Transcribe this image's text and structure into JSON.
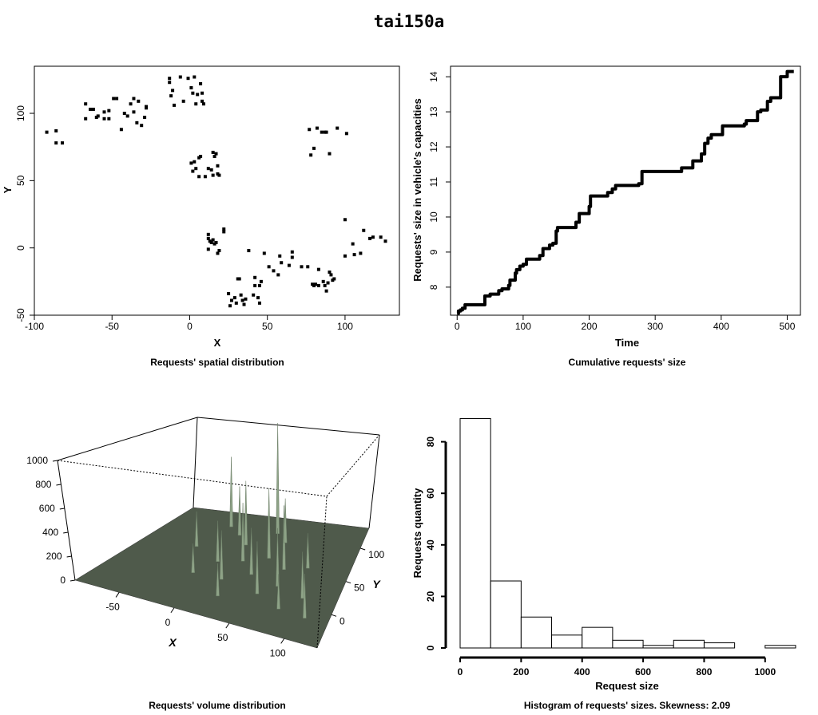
{
  "title": "tai150a",
  "chart_data": [
    {
      "type": "scatter",
      "caption": "Requests' spatial distribution",
      "xlabel": "X",
      "ylabel": "Y",
      "xlim": [
        -100,
        135
      ],
      "ylim": [
        -50,
        135
      ],
      "xticks": [
        -100,
        -50,
        0,
        50,
        100
      ],
      "yticks": [
        -50,
        0,
        50,
        100
      ],
      "points": [
        [
          -92,
          86
        ],
        [
          -86,
          87
        ],
        [
          -86,
          78
        ],
        [
          -82,
          78
        ],
        [
          -67,
          107
        ],
        [
          -67,
          96
        ],
        [
          -64,
          103
        ],
        [
          -62,
          103
        ],
        [
          -60,
          97
        ],
        [
          -59,
          98
        ],
        [
          -55,
          101
        ],
        [
          -55,
          96
        ],
        [
          -52,
          96
        ],
        [
          -52,
          102
        ],
        [
          -49,
          111
        ],
        [
          -47,
          111
        ],
        [
          -44,
          88
        ],
        [
          -42,
          100
        ],
        [
          -40,
          98
        ],
        [
          -38,
          107
        ],
        [
          -36,
          101
        ],
        [
          -36,
          111
        ],
        [
          -34,
          93
        ],
        [
          -33,
          109
        ],
        [
          -31,
          91
        ],
        [
          -29,
          97
        ],
        [
          -28,
          105
        ],
        [
          -28,
          104
        ],
        [
          -13,
          126
        ],
        [
          -13,
          123
        ],
        [
          -12,
          113
        ],
        [
          -11,
          117
        ],
        [
          -10,
          106
        ],
        [
          -6,
          127
        ],
        [
          -4,
          109
        ],
        [
          -1,
          126
        ],
        [
          1,
          119
        ],
        [
          2,
          115
        ],
        [
          3,
          127
        ],
        [
          4,
          107
        ],
        [
          5,
          114
        ],
        [
          7,
          122
        ],
        [
          8,
          115
        ],
        [
          8,
          109
        ],
        [
          9,
          107
        ],
        [
          1,
          63
        ],
        [
          2,
          57
        ],
        [
          3,
          64
        ],
        [
          4,
          59
        ],
        [
          6,
          53
        ],
        [
          6,
          67
        ],
        [
          7,
          68
        ],
        [
          10,
          53
        ],
        [
          12,
          59
        ],
        [
          14,
          58
        ],
        [
          15,
          71
        ],
        [
          15,
          54
        ],
        [
          16,
          68
        ],
        [
          17,
          70
        ],
        [
          18,
          61
        ],
        [
          18,
          55
        ],
        [
          19,
          54
        ],
        [
          12,
          10
        ],
        [
          12,
          7
        ],
        [
          12,
          -1
        ],
        [
          13,
          5
        ],
        [
          14,
          4
        ],
        [
          15,
          6
        ],
        [
          16,
          3
        ],
        [
          17,
          4
        ],
        [
          19,
          -2
        ],
        [
          18,
          -4
        ],
        [
          22,
          14
        ],
        [
          22,
          12
        ],
        [
          25,
          -34
        ],
        [
          26,
          -43
        ],
        [
          27,
          -39
        ],
        [
          29,
          -37
        ],
        [
          30,
          -41
        ],
        [
          31,
          -23
        ],
        [
          32,
          -23
        ],
        [
          33,
          -35
        ],
        [
          34,
          -39
        ],
        [
          35,
          -42
        ],
        [
          36,
          -38
        ],
        [
          38,
          -2
        ],
        [
          41,
          -35
        ],
        [
          42,
          -28
        ],
        [
          42,
          -22
        ],
        [
          44,
          -37
        ],
        [
          45,
          -28
        ],
        [
          45,
          -41
        ],
        [
          46,
          -25
        ],
        [
          48,
          -4
        ],
        [
          51,
          -14
        ],
        [
          54,
          -17
        ],
        [
          57,
          -20
        ],
        [
          58,
          -6
        ],
        [
          59,
          -11
        ],
        [
          64,
          -13
        ],
        [
          66,
          -3
        ],
        [
          66,
          -7
        ],
        [
          72,
          -14
        ],
        [
          77,
          88
        ],
        [
          78,
          69
        ],
        [
          80,
          74
        ],
        [
          82,
          89
        ],
        [
          85,
          86
        ],
        [
          87,
          86
        ],
        [
          88,
          86
        ],
        [
          90,
          70
        ],
        [
          95,
          89
        ],
        [
          101,
          85
        ],
        [
          76,
          -14
        ],
        [
          79,
          -27
        ],
        [
          80,
          -28
        ],
        [
          81,
          -27
        ],
        [
          83,
          -28
        ],
        [
          83,
          -16
        ],
        [
          86,
          -25
        ],
        [
          87,
          -28
        ],
        [
          88,
          -32
        ],
        [
          89,
          -26
        ],
        [
          90,
          -18
        ],
        [
          91,
          -20
        ],
        [
          92,
          -24
        ],
        [
          93,
          -23
        ],
        [
          100,
          -6
        ],
        [
          100,
          21
        ],
        [
          105,
          3
        ],
        [
          106,
          -5
        ],
        [
          110,
          -4
        ],
        [
          112,
          13
        ],
        [
          116,
          7
        ],
        [
          118,
          8
        ],
        [
          123,
          8
        ],
        [
          126,
          5
        ]
      ]
    },
    {
      "type": "line",
      "caption": "Cumulative requests' size",
      "xlabel": "Time",
      "ylabel": "Requests' size in vehicle's capacities",
      "xlim": [
        -10,
        520
      ],
      "ylim": [
        7.2,
        14.3
      ],
      "xticks": [
        0,
        100,
        200,
        300,
        400,
        500
      ],
      "yticks": [
        8,
        9,
        10,
        11,
        12,
        13,
        14
      ],
      "x": [
        0,
        2,
        5,
        8,
        12,
        20,
        30,
        42,
        50,
        60,
        63,
        68,
        78,
        80,
        88,
        90,
        95,
        100,
        105,
        115,
        125,
        130,
        140,
        145,
        150,
        152,
        175,
        180,
        185,
        200,
        202,
        228,
        235,
        240,
        275,
        280,
        300,
        320,
        340,
        345,
        357,
        368,
        370,
        375,
        380,
        385,
        400,
        402,
        420,
        435,
        438,
        455,
        460,
        470,
        475,
        485,
        490,
        500,
        505,
        510
      ],
      "y": [
        7.25,
        7.32,
        7.35,
        7.4,
        7.5,
        7.5,
        7.5,
        7.75,
        7.8,
        7.8,
        7.9,
        7.95,
        8.05,
        8.2,
        8.4,
        8.5,
        8.6,
        8.65,
        8.8,
        8.8,
        8.9,
        9.1,
        9.2,
        9.25,
        9.6,
        9.7,
        9.7,
        9.85,
        10.1,
        10.3,
        10.6,
        10.7,
        10.8,
        10.9,
        10.95,
        11.3,
        11.3,
        11.3,
        11.4,
        11.4,
        11.6,
        11.6,
        11.8,
        12.1,
        12.25,
        12.35,
        12.35,
        12.6,
        12.6,
        12.65,
        12.75,
        13.0,
        13.05,
        13.3,
        13.4,
        13.4,
        14.0,
        14.15,
        14.15,
        14.15
      ]
    },
    {
      "type": "surface3d",
      "caption": "Requests' volume distribution",
      "xlabel": "X",
      "ylabel": "Y",
      "zticks": [
        0,
        200,
        400,
        600,
        800,
        1000
      ],
      "xticks": [
        -50,
        0,
        50,
        100
      ],
      "yticks": [
        0,
        50,
        100
      ],
      "colors": {
        "surface": "#4f5a4b",
        "spike": "#8ea387"
      }
    },
    {
      "type": "bar",
      "caption": "Histogram of requests' sizes. Skewness: 2.09",
      "xlabel": "Request size",
      "ylabel": "Requests quantity",
      "bin_edges": [
        0,
        100,
        200,
        300,
        400,
        500,
        600,
        700,
        800,
        900,
        1000,
        1100
      ],
      "values": [
        89,
        26,
        12,
        5,
        8,
        3,
        1,
        3,
        2,
        0,
        1
      ],
      "xticks": [
        0,
        200,
        400,
        600,
        800,
        1000
      ],
      "yticks": [
        0,
        20,
        40,
        60,
        80
      ],
      "ylim": [
        0,
        90
      ]
    }
  ]
}
